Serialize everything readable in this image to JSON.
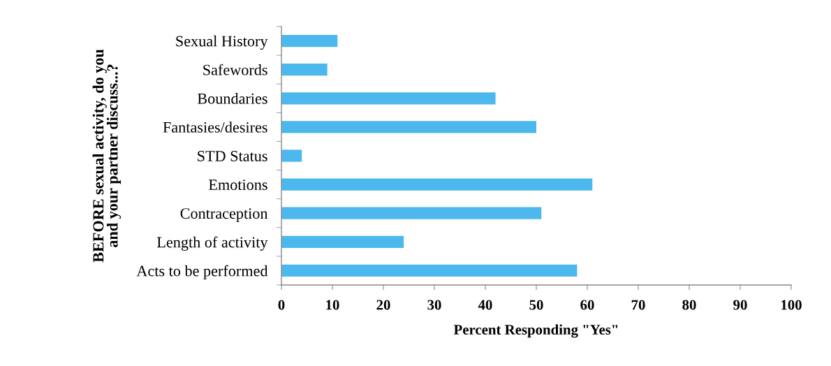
{
  "chart_data": {
    "type": "bar",
    "orientation": "horizontal",
    "categories": [
      "Sexual History",
      "Safewords",
      "Boundaries",
      "Fantasies/desires",
      "STD Status",
      "Emotions",
      "Contraception",
      "Length of activity",
      "Acts to be performed"
    ],
    "values": [
      11,
      9,
      42,
      50,
      4,
      61,
      51,
      24,
      58
    ],
    "color": "#4db8ee",
    "xlim": [
      0,
      100
    ],
    "xticks": [
      0,
      10,
      20,
      30,
      40,
      50,
      60,
      70,
      80,
      90,
      100
    ],
    "xlabel": "Percent Responding \"Yes\"",
    "ylabel": "BEFORE sexual activity, do you\nand your partner discuss...?"
  }
}
